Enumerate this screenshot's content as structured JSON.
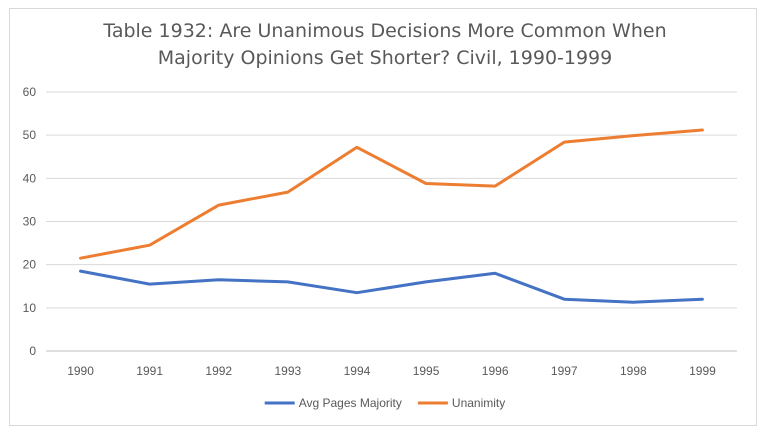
{
  "chart_data": {
    "type": "line",
    "title_lines": [
      "Table 1932: Are Unanimous Decisions More Common When",
      "Majority Opinions Get Shorter?  Civil, 1990-1999"
    ],
    "xlabel": "",
    "ylabel": "",
    "categories": [
      "1990",
      "1991",
      "1992",
      "1993",
      "1994",
      "1995",
      "1996",
      "1997",
      "1998",
      "1999"
    ],
    "ylim": [
      0,
      60
    ],
    "yticks": [
      "0",
      "10",
      "20",
      "30",
      "40",
      "50",
      "60"
    ],
    "grid": true,
    "legend_position": "bottom",
    "series": [
      {
        "name": "Avg Pages Majority",
        "color": "#4472c4",
        "values": [
          18.5,
          15.5,
          16.5,
          16.0,
          13.5,
          16.0,
          18.0,
          12.0,
          11.3,
          12.0
        ]
      },
      {
        "name": "Unanimity",
        "color": "#ed7d31",
        "values": [
          21.5,
          24.5,
          33.8,
          36.8,
          47.2,
          38.8,
          38.2,
          48.4,
          49.9,
          51.2
        ]
      }
    ]
  }
}
